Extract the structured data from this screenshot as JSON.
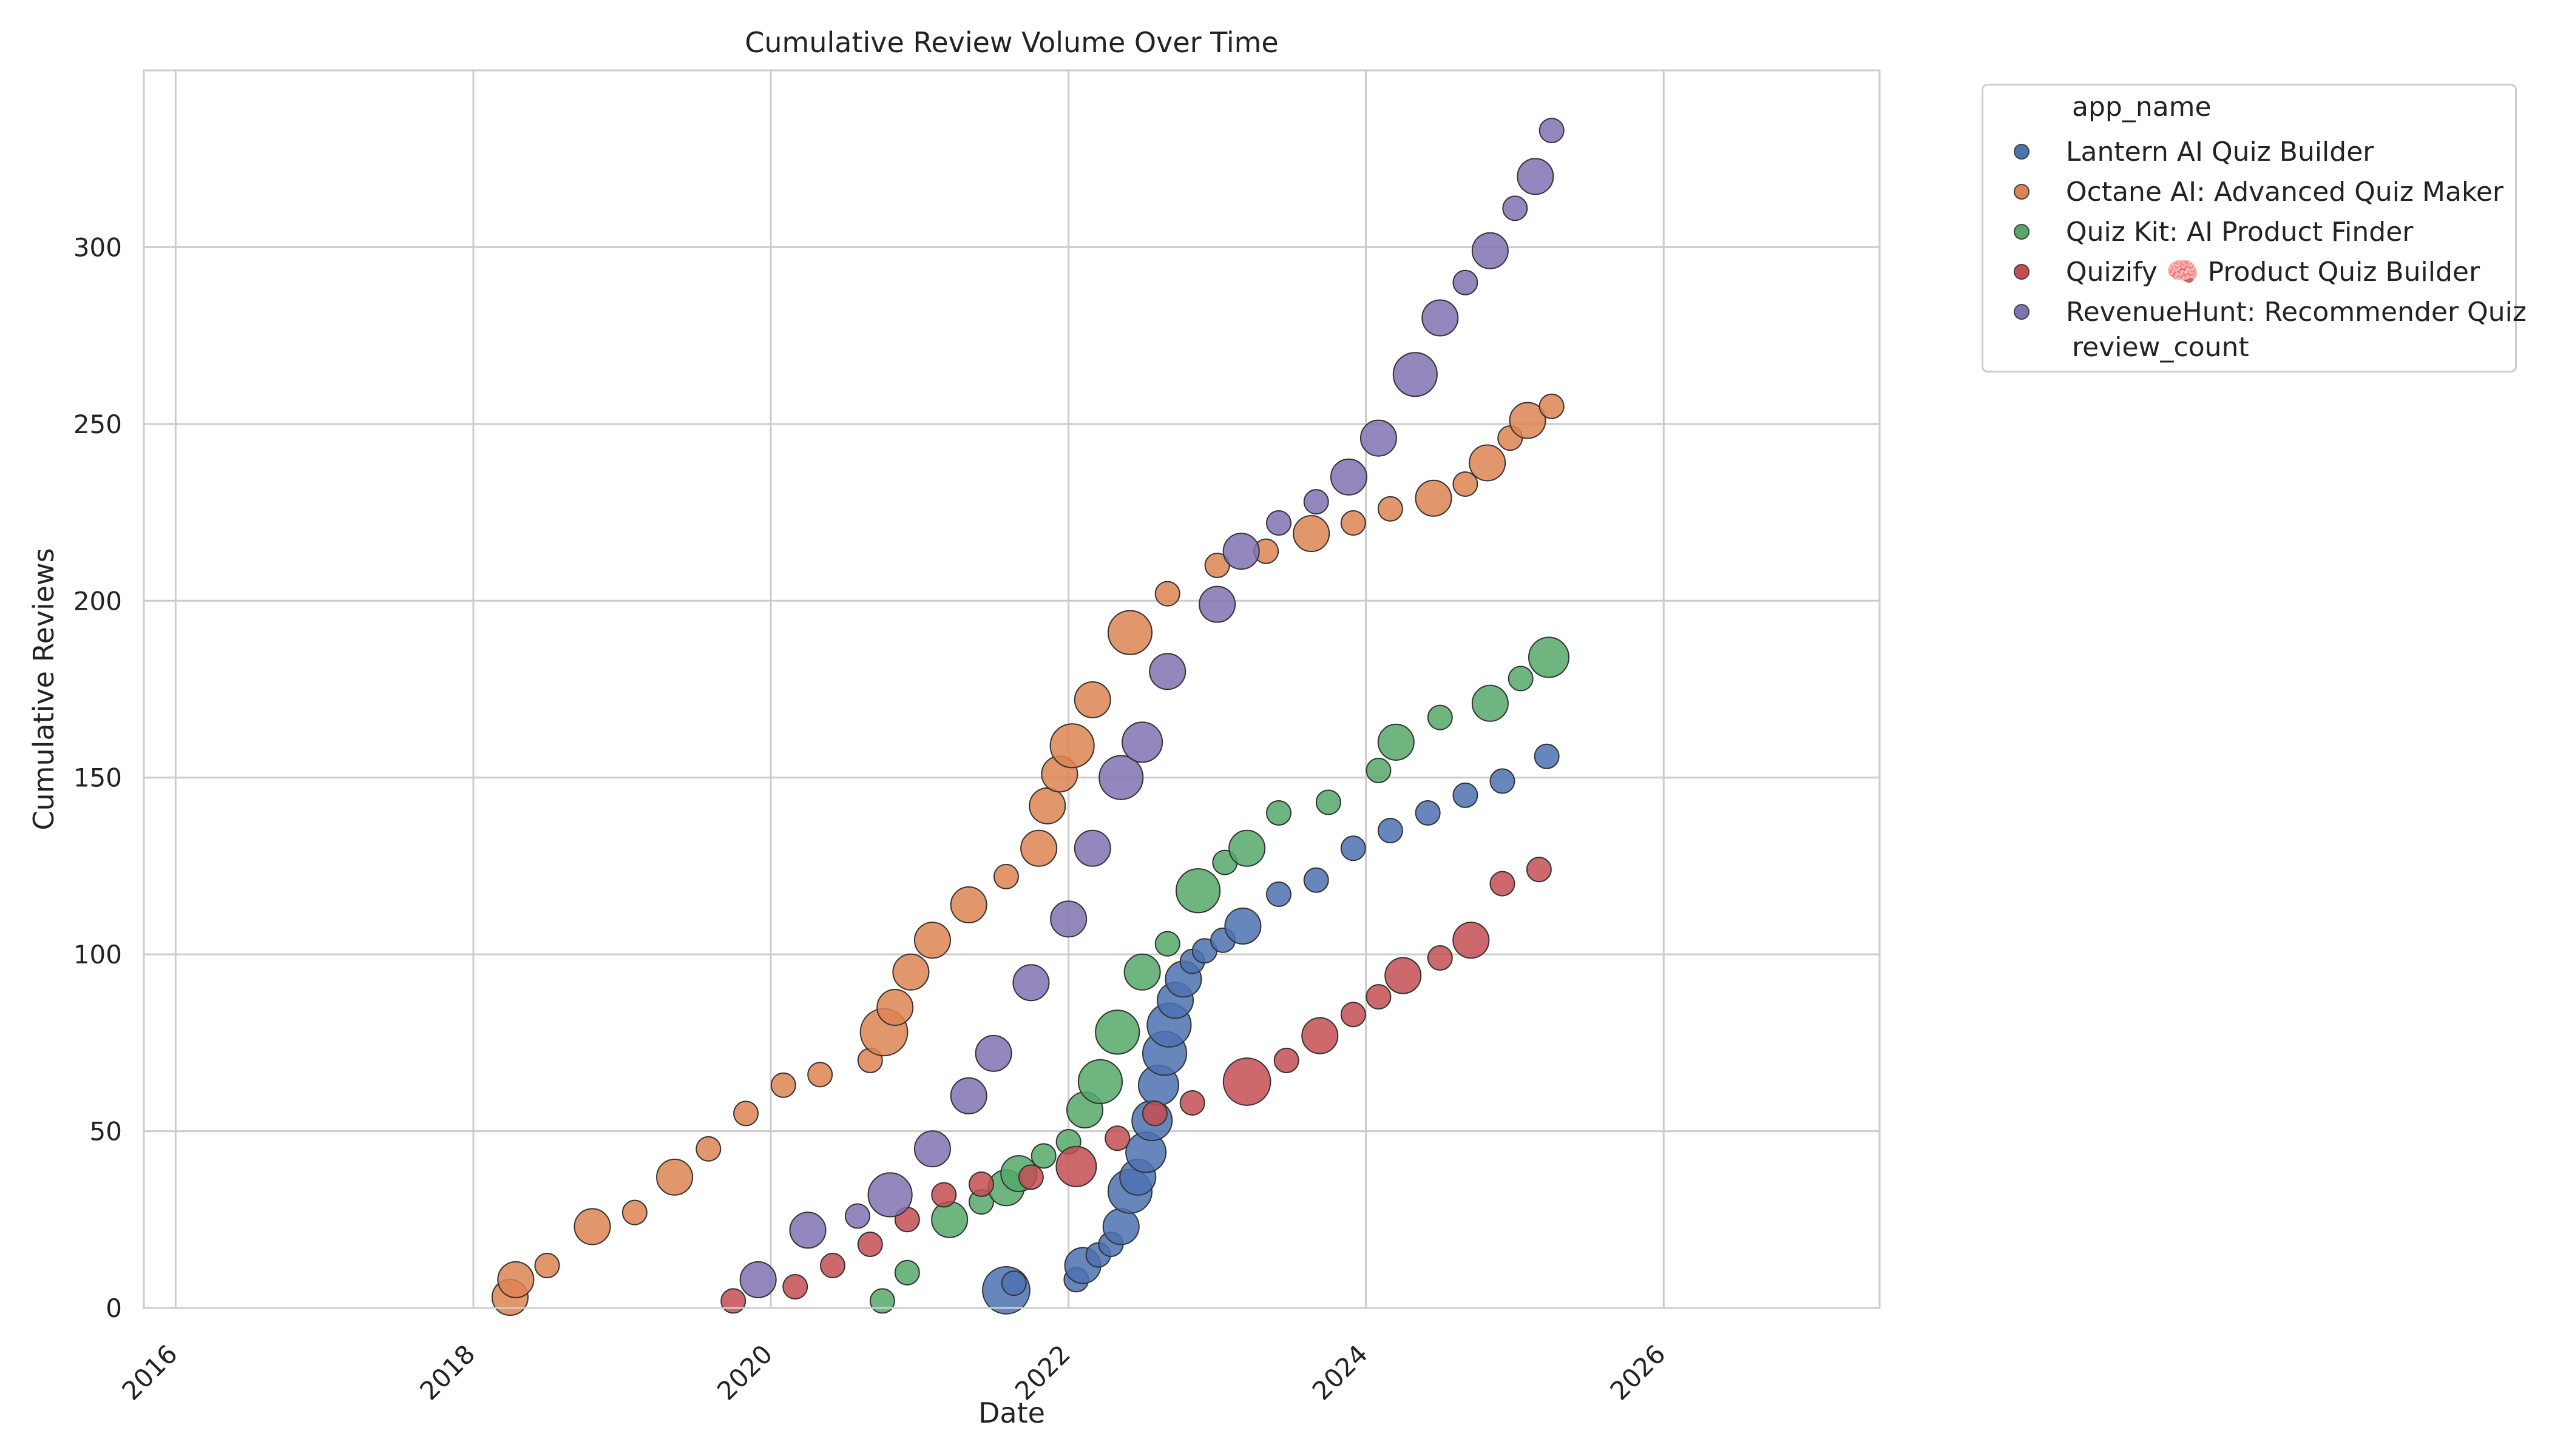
{
  "chart_data": {
    "type": "scatter",
    "title": "Cumulative Review Volume Over Time",
    "xlabel": "Date",
    "ylabel": "Cumulative Reviews",
    "xlim": [
      "2015-10-15",
      "2027-06-15"
    ],
    "ylim": [
      0,
      350
    ],
    "x_ticks": [
      "2016",
      "2018",
      "2020",
      "2022",
      "2024",
      "2026"
    ],
    "y_ticks": [
      "0",
      "50",
      "100",
      "150",
      "200",
      "250",
      "300"
    ],
    "grid": true,
    "legend": {
      "placement": "outside-right",
      "hue_title": "app_name",
      "size_title": "review_count"
    },
    "series": [
      {
        "name": "Lantern AI Quiz Builder",
        "color": "#4c72b0",
        "points": [
          [
            "2021-08-01",
            5,
            6
          ],
          [
            "2021-08-20",
            7,
            1
          ],
          [
            "2022-01-20",
            8,
            1
          ],
          [
            "2022-02-05",
            12,
            3
          ],
          [
            "2022-03-15",
            15,
            1
          ],
          [
            "2022-04-15",
            18,
            1
          ],
          [
            "2022-05-10",
            23,
            3
          ],
          [
            "2022-06-01",
            33,
            5
          ],
          [
            "2022-06-20",
            37,
            3
          ],
          [
            "2022-07-10",
            44,
            4
          ],
          [
            "2022-07-25",
            53,
            4
          ],
          [
            "2022-08-10",
            63,
            4
          ],
          [
            "2022-08-25",
            72,
            5
          ],
          [
            "2022-09-05",
            80,
            5
          ],
          [
            "2022-09-20",
            87,
            3
          ],
          [
            "2022-10-10",
            93,
            3
          ],
          [
            "2022-11-01",
            98,
            1
          ],
          [
            "2022-12-01",
            101,
            1
          ],
          [
            "2023-01-15",
            104,
            1
          ],
          [
            "2023-03-05",
            108,
            3
          ],
          [
            "2023-06-01",
            117,
            1
          ],
          [
            "2023-09-01",
            121,
            1
          ],
          [
            "2023-12-01",
            130,
            1
          ],
          [
            "2024-03-01",
            135,
            1
          ],
          [
            "2024-06-01",
            140,
            1
          ],
          [
            "2024-09-01",
            145,
            1
          ],
          [
            "2024-12-01",
            149,
            1
          ],
          [
            "2025-03-20",
            156,
            1
          ]
        ]
      },
      {
        "name": "Octane AI: Advanced Quiz Maker",
        "color": "#dd8452",
        "points": [
          [
            "2018-04-01",
            3,
            3
          ],
          [
            "2018-04-15",
            8,
            3
          ],
          [
            "2018-07-01",
            12,
            1
          ],
          [
            "2018-10-20",
            23,
            3
          ],
          [
            "2019-02-01",
            27,
            1
          ],
          [
            "2019-05-10",
            37,
            3
          ],
          [
            "2019-08-01",
            45,
            1
          ],
          [
            "2019-11-01",
            55,
            1
          ],
          [
            "2020-02-01",
            63,
            1
          ],
          [
            "2020-05-01",
            66,
            1
          ],
          [
            "2020-09-01",
            70,
            1
          ],
          [
            "2020-10-05",
            78,
            6
          ],
          [
            "2020-11-01",
            85,
            3
          ],
          [
            "2020-12-10",
            95,
            3
          ],
          [
            "2021-02-01",
            104,
            3
          ],
          [
            "2021-05-01",
            114,
            3
          ],
          [
            "2021-08-01",
            122,
            1
          ],
          [
            "2021-10-20",
            130,
            3
          ],
          [
            "2021-11-10",
            142,
            3
          ],
          [
            "2021-12-10",
            151,
            3
          ],
          [
            "2022-01-10",
            159,
            5
          ],
          [
            "2022-03-01",
            172,
            3
          ],
          [
            "2022-06-01",
            191,
            5
          ],
          [
            "2022-09-01",
            202,
            1
          ],
          [
            "2023-01-01",
            210,
            1
          ],
          [
            "2023-05-01",
            214,
            1
          ],
          [
            "2023-08-20",
            219,
            3
          ],
          [
            "2023-12-01",
            222,
            1
          ],
          [
            "2024-03-01",
            226,
            1
          ],
          [
            "2024-06-15",
            229,
            3
          ],
          [
            "2024-09-01",
            233,
            1
          ],
          [
            "2024-10-25",
            239,
            3
          ],
          [
            "2024-12-20",
            246,
            1
          ],
          [
            "2025-02-01",
            251,
            3
          ],
          [
            "2025-04-01",
            255,
            1
          ]
        ]
      },
      {
        "name": "Quiz Kit: AI Product Finder",
        "color": "#55a868",
        "points": [
          [
            "2020-10-01",
            2,
            1
          ],
          [
            "2020-12-01",
            10,
            1
          ],
          [
            "2021-03-15",
            25,
            3
          ],
          [
            "2021-06-01",
            30,
            1
          ],
          [
            "2021-08-01",
            34,
            3
          ],
          [
            "2021-09-01",
            38,
            3
          ],
          [
            "2021-11-01",
            43,
            1
          ],
          [
            "2022-01-01",
            47,
            1
          ],
          [
            "2022-02-10",
            56,
            3
          ],
          [
            "2022-03-20",
            64,
            5
          ],
          [
            "2022-05-01",
            78,
            5
          ],
          [
            "2022-07-01",
            95,
            3
          ],
          [
            "2022-09-01",
            103,
            1
          ],
          [
            "2022-11-15",
            118,
            5
          ],
          [
            "2023-01-20",
            126,
            1
          ],
          [
            "2023-03-15",
            130,
            3
          ],
          [
            "2023-06-01",
            140,
            1
          ],
          [
            "2023-10-01",
            143,
            1
          ],
          [
            "2024-02-01",
            152,
            1
          ],
          [
            "2024-03-15",
            160,
            3
          ],
          [
            "2024-07-01",
            167,
            1
          ],
          [
            "2024-11-01",
            171,
            3
          ],
          [
            "2025-01-15",
            178,
            1
          ],
          [
            "2025-03-25",
            184,
            4
          ]
        ]
      },
      {
        "name": "Quizify 🧠 Product Quiz Builder",
        "color": "#c44e52",
        "points": [
          [
            "2019-10-01",
            2,
            1
          ],
          [
            "2020-03-01",
            6,
            1
          ],
          [
            "2020-06-01",
            12,
            1
          ],
          [
            "2020-09-01",
            18,
            1
          ],
          [
            "2020-12-01",
            25,
            1
          ],
          [
            "2021-03-01",
            32,
            1
          ],
          [
            "2021-06-01",
            35,
            1
          ],
          [
            "2021-10-01",
            37,
            1
          ],
          [
            "2022-01-20",
            40,
            4
          ],
          [
            "2022-05-01",
            48,
            1
          ],
          [
            "2022-08-01",
            55,
            1
          ],
          [
            "2022-11-01",
            58,
            1
          ],
          [
            "2023-03-15",
            64,
            6
          ],
          [
            "2023-06-20",
            70,
            1
          ],
          [
            "2023-09-10",
            77,
            3
          ],
          [
            "2023-12-01",
            83,
            1
          ],
          [
            "2024-02-01",
            88,
            1
          ],
          [
            "2024-04-01",
            94,
            3
          ],
          [
            "2024-07-01",
            99,
            1
          ],
          [
            "2024-09-15",
            104,
            3
          ],
          [
            "2024-12-01",
            120,
            1
          ],
          [
            "2025-03-01",
            124,
            1
          ]
        ]
      },
      {
        "name": "RevenueHunt: Recommender Quiz",
        "color": "#8172b3",
        "points": [
          [
            "2019-12-01",
            8,
            3
          ],
          [
            "2020-04-01",
            22,
            3
          ],
          [
            "2020-08-01",
            26,
            1
          ],
          [
            "2020-10-20",
            32,
            5
          ],
          [
            "2021-02-01",
            45,
            3
          ],
          [
            "2021-05-01",
            60,
            3
          ],
          [
            "2021-07-01",
            72,
            3
          ],
          [
            "2021-10-01",
            92,
            3
          ],
          [
            "2022-01-01",
            110,
            3
          ],
          [
            "2022-03-01",
            130,
            3
          ],
          [
            "2022-05-10",
            150,
            5
          ],
          [
            "2022-07-01",
            160,
            4
          ],
          [
            "2022-09-01",
            180,
            3
          ],
          [
            "2023-01-01",
            199,
            3
          ],
          [
            "2023-03-01",
            214,
            3
          ],
          [
            "2023-06-01",
            222,
            1
          ],
          [
            "2023-09-01",
            228,
            1
          ],
          [
            "2023-11-20",
            235,
            3
          ],
          [
            "2024-02-01",
            246,
            3
          ],
          [
            "2024-05-01",
            264,
            5
          ],
          [
            "2024-07-01",
            280,
            3
          ],
          [
            "2024-09-01",
            290,
            1
          ],
          [
            "2024-11-01",
            299,
            3
          ],
          [
            "2025-01-01",
            311,
            1
          ],
          [
            "2025-02-20",
            320,
            3
          ],
          [
            "2025-04-01",
            333,
            1
          ]
        ]
      }
    ]
  }
}
